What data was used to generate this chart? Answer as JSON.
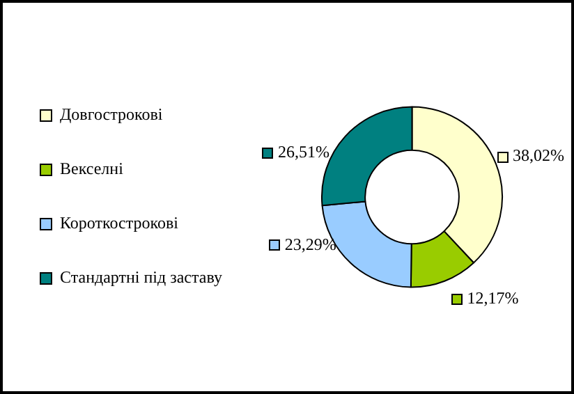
{
  "chart_data": {
    "type": "donut",
    "categories": [
      "Довгострокові",
      "Векселні",
      "Короткострокові",
      "Стандартні під заставу"
    ],
    "values": [
      38.02,
      12.17,
      23.29,
      26.51
    ],
    "colors": [
      "#ffffcc",
      "#99cc00",
      "#99ccff",
      "#008080"
    ],
    "value_labels": [
      "38,02%",
      "12,17%",
      "23,29%",
      "26,51%"
    ],
    "legend": "left"
  }
}
